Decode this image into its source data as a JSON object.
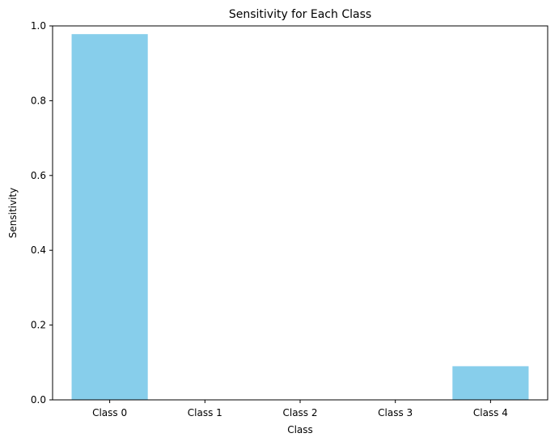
{
  "chart_data": {
    "type": "bar",
    "title": "Sensitivity for Each Class",
    "xlabel": "Class",
    "ylabel": "Sensitivity",
    "categories": [
      "Class 0",
      "Class 1",
      "Class 2",
      "Class 3",
      "Class 4"
    ],
    "values": [
      0.978,
      0.0,
      0.0,
      0.0,
      0.09
    ],
    "ylim": [
      0,
      1.0
    ],
    "yticks": [
      0.0,
      0.2,
      0.4,
      0.6,
      0.8,
      1.0
    ],
    "ytick_labels": [
      "0.0",
      "0.2",
      "0.4",
      "0.6",
      "0.8",
      "1.0"
    ],
    "bar_color": "#87CEEB",
    "grid": false,
    "legend": "none"
  }
}
